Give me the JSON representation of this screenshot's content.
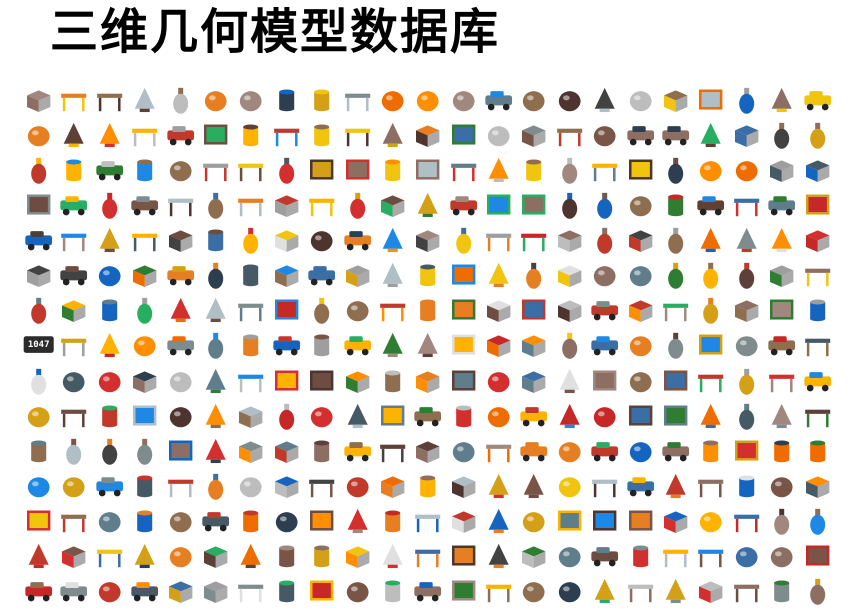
{
  "title": "三维几何模型数据库",
  "gallery": {
    "columns": 23,
    "rows": 15,
    "clock_text": "1047",
    "palette": [
      "#c0392b",
      "#2c3e50",
      "#8e6e4e",
      "#d4a017",
      "#3a6ea5",
      "#7f8c8d",
      "#27ae60",
      "#e67e22",
      "#5d4037",
      "#9e9e9e",
      "#1e88e5",
      "#6d4c41",
      "#b0bec5",
      "#f1c40f",
      "#8d6e63",
      "#455a64",
      "#a1887f",
      "#c62828",
      "#424242",
      "#bdbdbd",
      "#ef6c00",
      "#2e7d32",
      "#ffb300",
      "#607d8b",
      "#795548",
      "#e0e0e0",
      "#4e342e",
      "#d32f2f",
      "#1565c0",
      "#ff8f00"
    ],
    "icons": [
      "bus-icon",
      "tree-icon",
      "stool-icon",
      "sign-icon",
      "truck-icon",
      "lamp-icon",
      "bucket-icon",
      "hanger-icon",
      "swan-icon",
      "cup-icon",
      "door-icon",
      "car-icon",
      "tape-icon",
      "mug-icon",
      "frame-icon",
      "teacup-icon",
      "bottle-icon",
      "fridge-icon",
      "person-icon",
      "chair-icon",
      "box-icon",
      "vase-icon",
      "table-icon"
    ]
  }
}
